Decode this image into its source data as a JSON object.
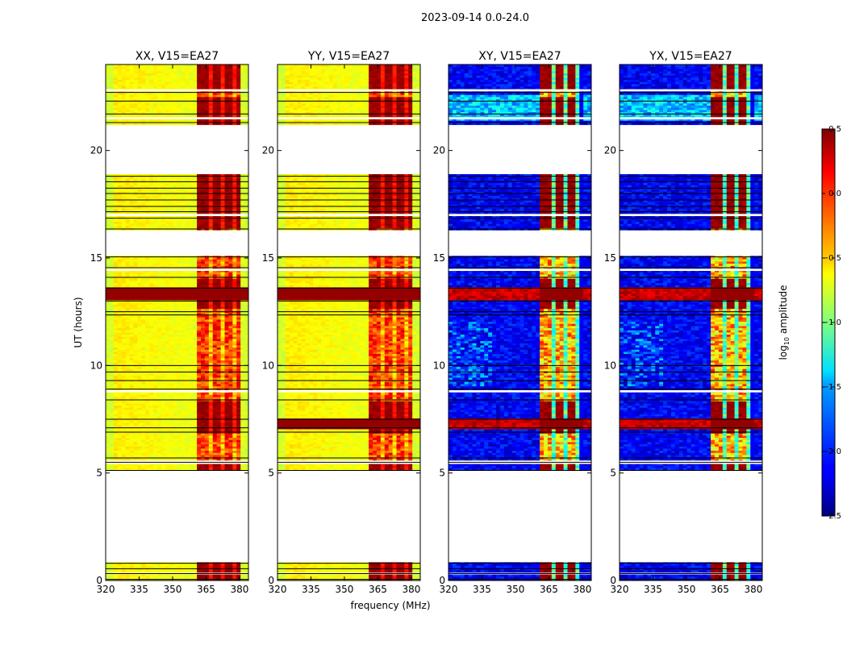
{
  "figure": {
    "suptitle": "2023-09-14 0.0-24.0"
  },
  "chart_data": {
    "type": "heatmap",
    "xlabel": "frequency (MHz)",
    "ylabel": "UT (hours)",
    "xlim": [
      320,
      384
    ],
    "ylim": [
      0,
      24
    ],
    "xticks": [
      "320",
      "335",
      "350",
      "365",
      "380"
    ],
    "xtick_values": [
      320,
      335,
      350,
      365,
      380
    ],
    "yticks": [
      "0",
      "5",
      "10",
      "15",
      "20"
    ],
    "ytick_values": [
      0,
      5,
      10,
      15,
      20
    ],
    "panels": [
      {
        "title": "XX, V15=EA27",
        "pol": "XX"
      },
      {
        "title": "YY, V15=EA27",
        "pol": "YY"
      },
      {
        "title": "XY, V15=EA27",
        "pol": "XY"
      },
      {
        "title": "YX, V15=EA27",
        "pol": "YX"
      }
    ],
    "data_segments_hours": [
      [
        0.0,
        0.85
      ],
      [
        5.15,
        15.1
      ],
      [
        16.3,
        18.9
      ],
      [
        21.2,
        24.0
      ]
    ],
    "rfi_band_mhz": [
      361,
      380
    ],
    "colorbar": {
      "label": "log10 amplitude",
      "label_base": "log",
      "label_sub": "10",
      "label_rest": " amplitude",
      "range": [
        -2.5,
        0.5
      ],
      "ticks": [
        "0.5",
        "0.0",
        "−0.5",
        "−1.0",
        "−1.5",
        "−2.0",
        "−2.5"
      ],
      "tick_values": [
        0.5,
        0.0,
        -0.5,
        -1.0,
        -1.5,
        -2.0,
        -2.5
      ],
      "colormap": "jet"
    }
  }
}
